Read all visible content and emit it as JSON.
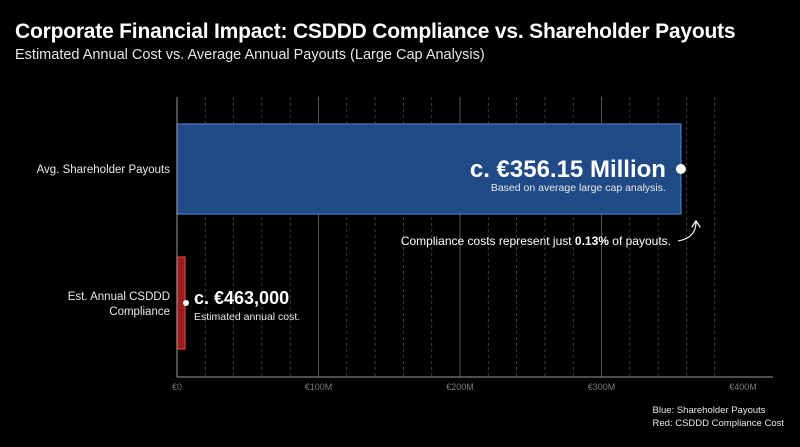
{
  "title": "Corporate Financial Impact: CSDDD Compliance vs. Shareholder Payouts",
  "subtitle": "Estimated Annual Cost vs. Average Annual Payouts (Large Cap Analysis)",
  "colors": {
    "background": "#000000",
    "payouts_fill": "#1f4a86",
    "payouts_border": "#3f7fd0",
    "compliance_fill": "#9b1c1c",
    "compliance_border": "#e03a3a",
    "gridline": "#4a4a4a",
    "tick_text": "#7a7a7a"
  },
  "chart_data": {
    "type": "bar",
    "orientation": "horizontal",
    "categories": [
      "Avg. Shareholder Payouts",
      "Est. Annual CSDDD Compliance"
    ],
    "values": [
      356150000,
      463000
    ],
    "unit": "EUR",
    "xlim": [
      0,
      400000000
    ],
    "xticks": [
      0,
      100000000,
      200000000,
      300000000,
      400000000
    ],
    "xtick_labels": [
      "€0",
      "€100M",
      "€200M",
      "€300M",
      "€400M"
    ],
    "grid": "vertical dashed",
    "series": [
      {
        "values": [
          356150000,
          null
        ],
        "color": "#1f4a86"
      },
      {
        "values": [
          null,
          463000
        ],
        "color": "#9b1c1c"
      }
    ]
  },
  "annotations": {
    "payouts_value": "c. €356.15 Million",
    "payouts_note": "Based on average large cap analysis.",
    "compliance_value": "c. €463,000",
    "compliance_note": "Estimated annual cost.",
    "ratio_prefix": "Compliance costs represent just ",
    "ratio_value": "0.13%",
    "ratio_suffix": " of payouts."
  },
  "legend": {
    "blue": "Blue: Shareholder Payouts",
    "red": "Red: CSDDD Compliance Cost"
  }
}
